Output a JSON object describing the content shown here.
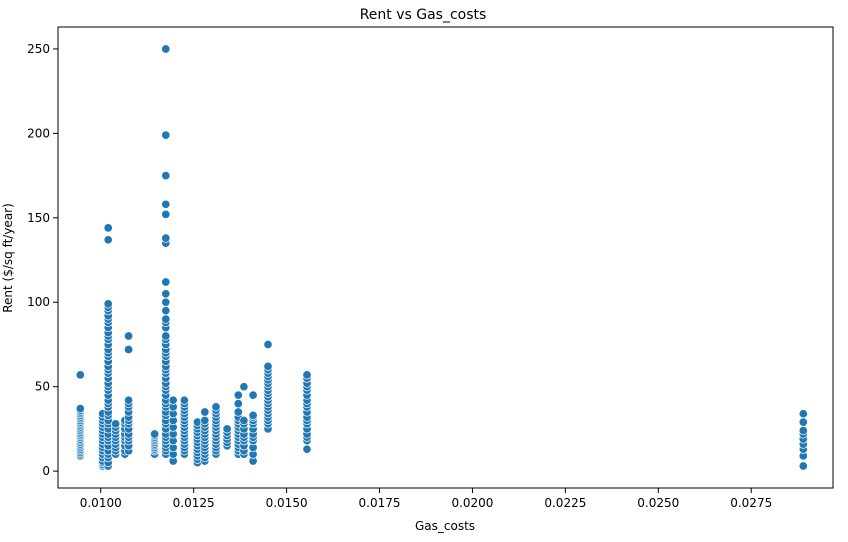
{
  "chart_data": {
    "type": "scatter",
    "title": "Rent vs Gas_costs",
    "xlabel": "Gas_costs",
    "ylabel": "Rent ($/sq ft/year)",
    "xlim": [
      0.00885,
      0.0297
    ],
    "ylim": [
      -10,
      263
    ],
    "x_ticks": [
      0.01,
      0.0125,
      0.015,
      0.0175,
      0.02,
      0.0225,
      0.025,
      0.0275
    ],
    "x_tick_labels": [
      "0.0100",
      "0.0125",
      "0.0150",
      "0.0175",
      "0.0200",
      "0.0225",
      "0.0250",
      "0.0275"
    ],
    "y_ticks": [
      0,
      50,
      100,
      150,
      200,
      250
    ],
    "y_tick_labels": [
      "0",
      "50",
      "100",
      "150",
      "200",
      "250"
    ],
    "grid": false,
    "color": "#1f77b4",
    "clusters": [
      {
        "x": 0.00945,
        "values": [
          9,
          10,
          11,
          12,
          13,
          14,
          15,
          16,
          17,
          18,
          19,
          20,
          21,
          22,
          23,
          24,
          25,
          26,
          27,
          28,
          29,
          30,
          31,
          32,
          33,
          34,
          35,
          36,
          37,
          57
        ]
      },
      {
        "x": 0.01005,
        "values": [
          3,
          4,
          5,
          6,
          8,
          10,
          12,
          14,
          16,
          18,
          20,
          22,
          24,
          26,
          28,
          30,
          32,
          34
        ]
      },
      {
        "x": 0.0102,
        "values": [
          3,
          5,
          8,
          10,
          12,
          15,
          18,
          20,
          22,
          25,
          28,
          30,
          33,
          35,
          38,
          40,
          42,
          45,
          48,
          50,
          52,
          55,
          58,
          60,
          62,
          65,
          68,
          70,
          72,
          75,
          78,
          80,
          82,
          85,
          88,
          90,
          92,
          95,
          97,
          99,
          137,
          144
        ]
      },
      {
        "x": 0.0104,
        "values": [
          10,
          12,
          14,
          16,
          18,
          20,
          22,
          24,
          26,
          28
        ]
      },
      {
        "x": 0.01065,
        "values": [
          10,
          12,
          15,
          18,
          20,
          22,
          25,
          28,
          30
        ]
      },
      {
        "x": 0.01075,
        "values": [
          12,
          15,
          18,
          20,
          22,
          25,
          28,
          30,
          32,
          35,
          38,
          40,
          42,
          72,
          80
        ]
      },
      {
        "x": 0.01145,
        "values": [
          10,
          12,
          13,
          14,
          15,
          16,
          17,
          18,
          19,
          20,
          21,
          22
        ]
      },
      {
        "x": 0.01175,
        "values": [
          10,
          12,
          14,
          16,
          18,
          20,
          22,
          25,
          28,
          30,
          33,
          35,
          38,
          40,
          42,
          45,
          48,
          50,
          52,
          55,
          58,
          60,
          62,
          65,
          68,
          70,
          72,
          75,
          78,
          80,
          85,
          88,
          90,
          95,
          100,
          105,
          112,
          135,
          138,
          152,
          158,
          175,
          199,
          250
        ]
      },
      {
        "x": 0.01195,
        "values": [
          6,
          10,
          14,
          18,
          22,
          26,
          30,
          34,
          38,
          42
        ]
      },
      {
        "x": 0.01225,
        "values": [
          10,
          12,
          14,
          16,
          18,
          20,
          22,
          24,
          26,
          28,
          30,
          32,
          34,
          36,
          38,
          40,
          42
        ]
      },
      {
        "x": 0.0126,
        "values": [
          5,
          7,
          9,
          11,
          13,
          15,
          17,
          19,
          21,
          23,
          25,
          27,
          29
        ]
      },
      {
        "x": 0.0128,
        "values": [
          6,
          8,
          10,
          12,
          14,
          16,
          18,
          20,
          22,
          24,
          26,
          28,
          30,
          35
        ]
      },
      {
        "x": 0.0131,
        "values": [
          10,
          12,
          14,
          16,
          18,
          20,
          22,
          24,
          26,
          28,
          30,
          32,
          34,
          36,
          38
        ]
      },
      {
        "x": 0.0134,
        "values": [
          15,
          17,
          19,
          21,
          23,
          25
        ]
      },
      {
        "x": 0.0137,
        "values": [
          10,
          12,
          14,
          16,
          18,
          20,
          22,
          24,
          26,
          28,
          30,
          32,
          35,
          40,
          45
        ]
      },
      {
        "x": 0.01385,
        "values": [
          10,
          12,
          15,
          18,
          20,
          22,
          25,
          28,
          30,
          50
        ]
      },
      {
        "x": 0.0141,
        "values": [
          6,
          10,
          14,
          18,
          20,
          22,
          25,
          28,
          30,
          32,
          33,
          45
        ]
      },
      {
        "x": 0.0145,
        "values": [
          25,
          28,
          30,
          32,
          34,
          36,
          38,
          40,
          42,
          44,
          46,
          48,
          50,
          52,
          54,
          56,
          58,
          60,
          62,
          75
        ]
      },
      {
        "x": 0.01555,
        "values": [
          13,
          18,
          20,
          22,
          25,
          28,
          30,
          32,
          35,
          38,
          40,
          42,
          45,
          48,
          50,
          52,
          55,
          57
        ]
      },
      {
        "x": 0.0289,
        "values": [
          3,
          9,
          13,
          16,
          19,
          22,
          24,
          29,
          34
        ]
      }
    ]
  }
}
